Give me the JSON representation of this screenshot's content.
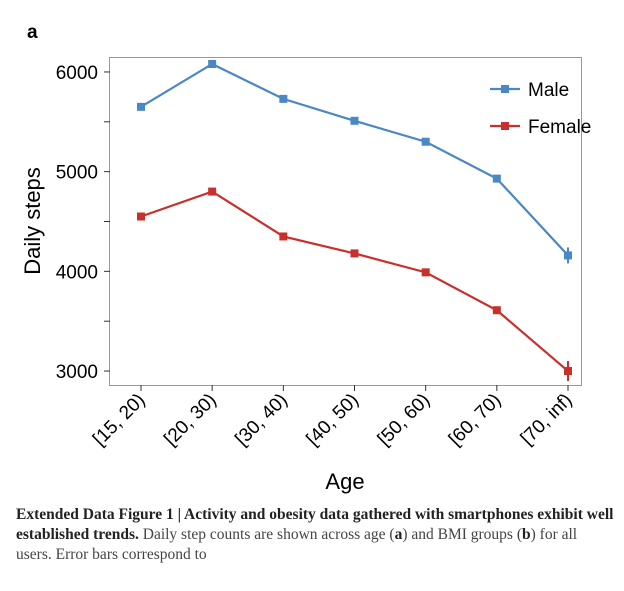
{
  "panel_label": "a",
  "chart_data": {
    "type": "line",
    "xlabel": "Age",
    "ylabel": "Daily steps",
    "categories": [
      "[15, 20)",
      "[20, 30)",
      "[30, 40)",
      "[40, 50)",
      "[50, 60)",
      "[60, 70)",
      "[70, inf)"
    ],
    "y_ticks": [
      3000,
      4000,
      5000,
      6000
    ],
    "ylim": [
      2860,
      6140
    ],
    "legend_position": "top-right",
    "grid": false,
    "series": [
      {
        "name": "Male",
        "color": "#4a87c5",
        "values": [
          5650,
          6080,
          5730,
          5510,
          5300,
          4930,
          4160
        ],
        "errors": [
          25,
          25,
          25,
          25,
          25,
          30,
          80
        ]
      },
      {
        "name": "Female",
        "color": "#c9302c",
        "values": [
          4550,
          4800,
          4350,
          4180,
          3990,
          3610,
          3000
        ],
        "errors": [
          25,
          25,
          25,
          25,
          25,
          35,
          100
        ]
      }
    ]
  },
  "caption": {
    "heading": "Extended Data Figure 1 | Activity and obesity data gathered with smartphones exhibit well established trends.",
    "body_1": " Daily step counts are shown across age (",
    "a": "a",
    "body_2": ") and BMI groups (",
    "b": "b",
    "body_3": ") for all users. Error bars correspond to"
  }
}
